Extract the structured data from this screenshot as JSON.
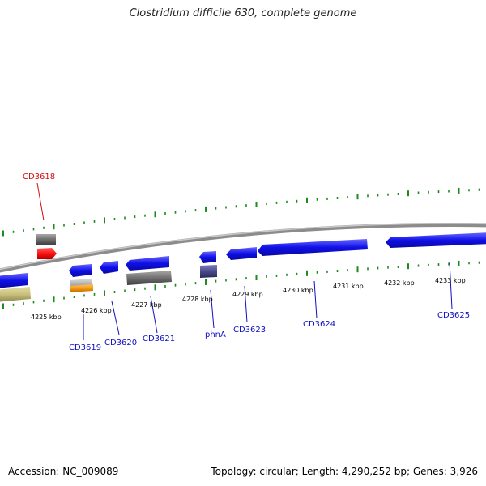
{
  "title": "Clostridium difficile 630, complete genome",
  "footer": {
    "accession": "Accession: NC_009089",
    "topology": "Topology: circular; Length: 4,290,252 bp; Genes: 3,926"
  },
  "colors": {
    "backbone": "#8c8c8c",
    "tick": "#1f8a1f",
    "cds_blue": "#1010e8",
    "gene_red": "#ff1010",
    "gene_grey": "#707070",
    "gene_olive": "#c8c07a",
    "gene_orange": "#f59a12",
    "gene_purple": "#4a4a8c",
    "label_blue": "#1010c0",
    "label_red": "#d01010"
  },
  "kbp_labels": [
    "4225 kbp",
    "4226 kbp",
    "4227 kbp",
    "4228 kbp",
    "4229 kbp",
    "4230 kbp",
    "4231 kbp",
    "4232 kbp",
    "4233 kbp"
  ],
  "gene_labels": [
    "CD3618",
    "CD3619",
    "CD3620",
    "CD3621",
    "phnA",
    "CD3623",
    "CD3624",
    "CD3625"
  ]
}
